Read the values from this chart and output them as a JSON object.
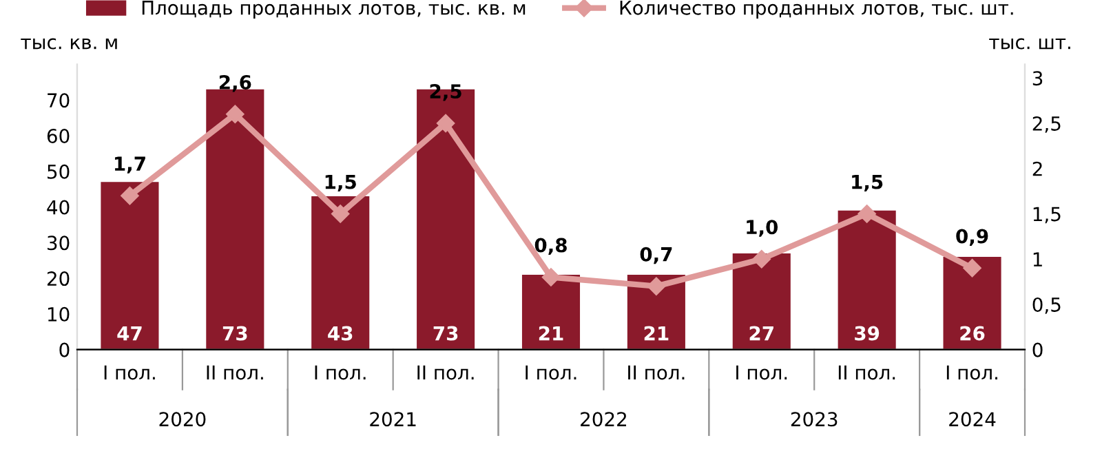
{
  "chart_data": {
    "type": "bar",
    "categories": [
      "I пол.",
      "II пол.",
      "I пол.",
      "II пол.",
      "I пол.",
      "II пол.",
      "I пол.",
      "II пол.",
      "I пол."
    ],
    "series": [
      {
        "name": "Площадь проданных лотов, тыс. кв. м",
        "color": "#8b1a2b",
        "values": [
          47,
          73,
          43,
          73,
          21,
          21,
          27,
          39,
          26
        ],
        "value_labels": [
          "47",
          "73",
          "43",
          "73",
          "21",
          "21",
          "27",
          "39",
          "26"
        ]
      },
      {
        "name": "Количество проданных лотов, тыс. шт.",
        "type": "line",
        "axis": "y2",
        "color": "#e09a9a",
        "marker": "diamond",
        "values": [
          1.7,
          2.6,
          1.5,
          2.5,
          0.8,
          0.7,
          1.0,
          1.5,
          0.9
        ],
        "value_labels": [
          "1,7",
          "2,6",
          "1,5",
          "2,5",
          "0,8",
          "0,7",
          "1,0",
          "1,5",
          "0,9"
        ]
      }
    ],
    "ylabel": "тыс. кв. м",
    "y2label": "тыс. шт.",
    "ylim": [
      0,
      80
    ],
    "yticks": [
      0,
      10,
      20,
      30,
      40,
      50,
      60,
      70
    ],
    "y2lim": [
      0,
      3.15
    ],
    "y2ticks": [
      0,
      {
        "value": 0.5,
        "label": "0,5"
      },
      1,
      {
        "value": 1.5,
        "label": "1,5"
      },
      2,
      {
        "value": 2.5,
        "label": "2,5"
      },
      3
    ],
    "annotations": [
      "2020",
      "2021",
      "2022",
      "2023",
      "2024"
    ],
    "legend": "top",
    "grid": false
  }
}
